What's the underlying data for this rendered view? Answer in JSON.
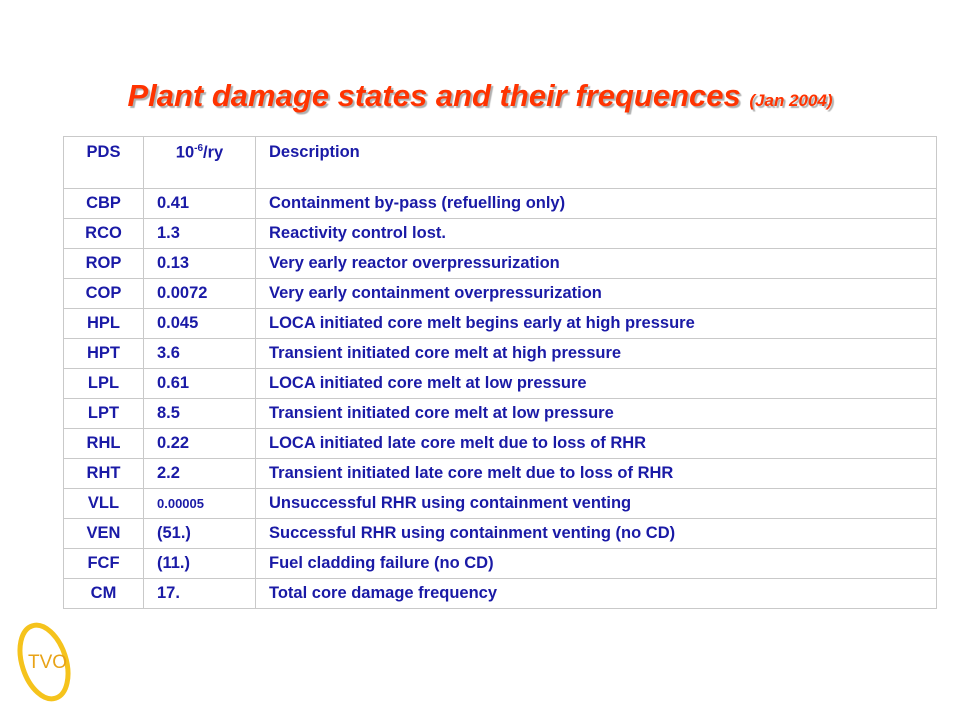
{
  "title": {
    "main": "Plant damage states and their frequences",
    "date": "(Jan 2004)"
  },
  "table": {
    "headers": {
      "pds": "PDS",
      "freq_base": "10",
      "freq_exp": "-6",
      "freq_unit": "/ry",
      "description": "Description"
    },
    "rows": [
      {
        "pds": "CBP",
        "freq": "0.41",
        "description": "Containment by-pass (refuelling only)"
      },
      {
        "pds": "RCO",
        "freq": "1.3",
        "description": "Reactivity control lost."
      },
      {
        "pds": "ROP",
        "freq": "0.13",
        "description": "Very early reactor overpressurization"
      },
      {
        "pds": "COP",
        "freq": "0.0072",
        "description": "Very early containment overpressurization"
      },
      {
        "pds": "HPL",
        "freq": "0.045",
        "description": "LOCA initiated core melt begins early at high pressure"
      },
      {
        "pds": "HPT",
        "freq": "3.6",
        "description": "Transient initiated core melt at high pressure"
      },
      {
        "pds": "LPL",
        "freq": "0.61",
        "description": "LOCA initiated core melt at low pressure"
      },
      {
        "pds": "LPT",
        "freq": "8.5",
        "description": "Transient initiated core melt at low pressure"
      },
      {
        "pds": "RHL",
        "freq": "0.22",
        "description": "LOCA initiated late core melt due to loss of RHR"
      },
      {
        "pds": "RHT",
        "freq": "2.2",
        "description": "Transient initiated late core melt due to loss of RHR"
      },
      {
        "pds": "VLL",
        "freq": "0.00005",
        "description": "Unsuccessful RHR using containment venting"
      },
      {
        "pds": "VEN",
        "freq": "(51.)",
        "description": "Successful RHR using containment venting (no CD)"
      },
      {
        "pds": "FCF",
        "freq": "(11.)",
        "description": "Fuel cladding failure (no CD)"
      },
      {
        "pds": "CM",
        "freq": "17.",
        "description": "Total core damage frequency"
      }
    ]
  },
  "logo": {
    "text": "TVO",
    "ring_color": "#f5c31c",
    "text_color": "#e8a317"
  },
  "colors": {
    "title": "#ff3300",
    "table_text": "#1a1aa6",
    "grid": "#c9c9c9"
  }
}
